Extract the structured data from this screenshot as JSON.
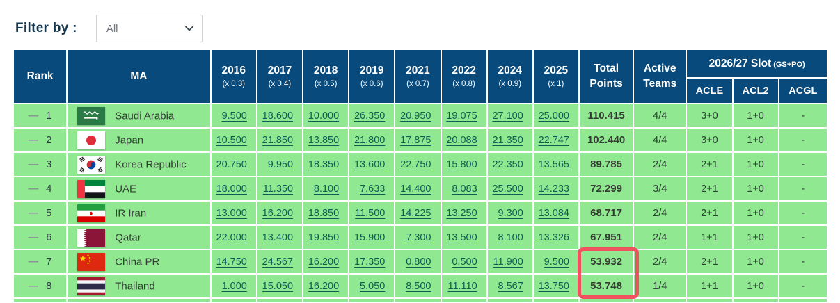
{
  "filter": {
    "label": "Filter by :",
    "selected": "All"
  },
  "table": {
    "headers": {
      "rank": "Rank",
      "ma": "MA",
      "total": "Total Points",
      "active": "Active Teams",
      "slot_title": "2026/27 Slot",
      "slot_note": "(GS+PO)",
      "slot_subs": [
        "ACLE",
        "ACL2",
        "ACGL"
      ]
    },
    "year_columns": [
      {
        "year": "2016",
        "multiplier": "(x 0.3)"
      },
      {
        "year": "2017",
        "multiplier": "(x 0.4)"
      },
      {
        "year": "2018",
        "multiplier": "(x 0.5)"
      },
      {
        "year": "2019",
        "multiplier": "(x 0.6)"
      },
      {
        "year": "2021",
        "multiplier": "(x 0.7)"
      },
      {
        "year": "2022",
        "multiplier": "(x 0.8)"
      },
      {
        "year": "2024",
        "multiplier": "(x 0.9)"
      },
      {
        "year": "2025",
        "multiplier": "(x 1)"
      }
    ],
    "rows": [
      {
        "movement": "—",
        "rank": "1",
        "country": "Saudi Arabia",
        "flag": "saudi-arabia",
        "values": [
          "9.500",
          "18.600",
          "10.000",
          "26.350",
          "20.950",
          "19.075",
          "27.100",
          "25.000"
        ],
        "total": "110.415",
        "active": "4/4",
        "acle": "3+0",
        "acl2": "1+0",
        "acgl": "-"
      },
      {
        "movement": "—",
        "rank": "2",
        "country": "Japan",
        "flag": "japan",
        "values": [
          "10.500",
          "21.850",
          "13.850",
          "21.800",
          "17.875",
          "20.088",
          "21.350",
          "22.747"
        ],
        "total": "102.440",
        "active": "4/4",
        "acle": "3+0",
        "acl2": "1+0",
        "acgl": "-"
      },
      {
        "movement": "—",
        "rank": "3",
        "country": "Korea Republic",
        "flag": "korea-republic",
        "values": [
          "20.750",
          "9.950",
          "18.350",
          "13.600",
          "22.750",
          "15.800",
          "22.350",
          "13.565"
        ],
        "total": "89.785",
        "active": "2/4",
        "acle": "2+1",
        "acl2": "1+0",
        "acgl": "-"
      },
      {
        "movement": "—",
        "rank": "4",
        "country": "UAE",
        "flag": "uae",
        "values": [
          "18.000",
          "11.350",
          "8.100",
          "7.633",
          "14.400",
          "8.083",
          "25.500",
          "14.233"
        ],
        "total": "72.299",
        "active": "3/4",
        "acle": "2+1",
        "acl2": "1+0",
        "acgl": "-"
      },
      {
        "movement": "—",
        "rank": "5",
        "country": "IR Iran",
        "flag": "ir-iran",
        "values": [
          "13.000",
          "16.200",
          "18.850",
          "11.500",
          "14.225",
          "13.250",
          "9.300",
          "13.084"
        ],
        "total": "68.717",
        "active": "2/4",
        "acle": "2+1",
        "acl2": "1+0",
        "acgl": "-"
      },
      {
        "movement": "—",
        "rank": "6",
        "country": "Qatar",
        "flag": "qatar",
        "values": [
          "22.000",
          "13.400",
          "19.850",
          "15.900",
          "7.300",
          "13.500",
          "8.100",
          "13.326"
        ],
        "total": "67.951",
        "active": "2/4",
        "acle": "1+1",
        "acl2": "1+0",
        "acgl": "-"
      },
      {
        "movement": "—",
        "rank": "7",
        "country": "China PR",
        "flag": "china-pr",
        "values": [
          "14.750",
          "24.567",
          "16.200",
          "17.350",
          "0.800",
          "0.500",
          "11.900",
          "9.500"
        ],
        "total": "53.932",
        "active": "2/4",
        "acle": "2+1",
        "acl2": "1+0",
        "acgl": "-"
      },
      {
        "movement": "—",
        "rank": "8",
        "country": "Thailand",
        "flag": "thailand",
        "values": [
          "1.000",
          "15.050",
          "16.200",
          "5.050",
          "8.500",
          "11.110",
          "8.567",
          "13.750"
        ],
        "total": "53.748",
        "active": "1/4",
        "acle": "1+1",
        "acl2": "1+0",
        "acgl": "-"
      }
    ]
  },
  "highlight": {
    "column": "Total Points",
    "rows": [
      "China PR",
      "Thailand"
    ]
  },
  "colors": {
    "header_bg": "#084a7b",
    "row_bg": "#90e890",
    "link": "#0d5f56",
    "highlight_border": "#ef5360"
  }
}
